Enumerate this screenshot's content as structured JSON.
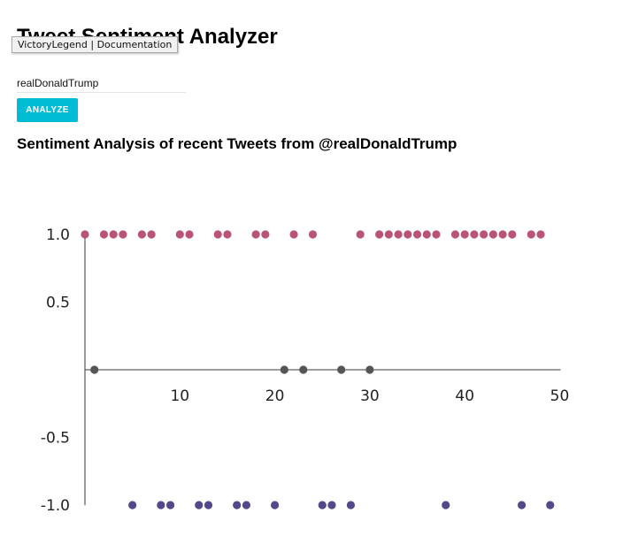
{
  "header": {
    "title": "Tweet Sentiment Analyzer"
  },
  "tooltip": {
    "text": "VictoryLegend | Documentation"
  },
  "search": {
    "value": "realDonaldTrump"
  },
  "analyze_button": {
    "label": "ANALYZE",
    "color": "#00bcd4"
  },
  "chart_data": {
    "type": "scatter",
    "title": "Sentiment Analysis of recent Tweets from @realDonaldTrump",
    "xlabel": "",
    "ylabel": "",
    "xlim": [
      0,
      50
    ],
    "ylim": [
      -1,
      1
    ],
    "x_ticks": [
      10,
      20,
      30,
      40,
      50
    ],
    "y_ticks": [
      1.0,
      0.5,
      -0.5,
      -1.0
    ],
    "y_tick_labels": [
      "1.0",
      "0.5",
      "-0.5",
      "-1.0"
    ],
    "grid": false,
    "legend": "none",
    "colors": {
      "positive": "#b85575",
      "neutral": "#555555",
      "negative": "#54478a"
    },
    "series": [
      {
        "sentiment": "positive",
        "y": 1,
        "x": [
          0,
          2,
          3,
          4,
          6,
          7,
          10,
          11,
          14,
          15,
          18,
          19,
          22,
          24,
          29,
          31,
          32,
          33,
          34,
          35,
          36,
          37,
          39,
          40,
          41,
          42,
          43,
          44,
          45,
          47,
          48
        ]
      },
      {
        "sentiment": "neutral",
        "y": 0,
        "x": [
          1,
          21,
          23,
          27,
          30
        ]
      },
      {
        "sentiment": "negative",
        "y": -1,
        "x": [
          5,
          8,
          9,
          12,
          13,
          16,
          17,
          20,
          25,
          26,
          28,
          38,
          46,
          49
        ]
      }
    ]
  }
}
